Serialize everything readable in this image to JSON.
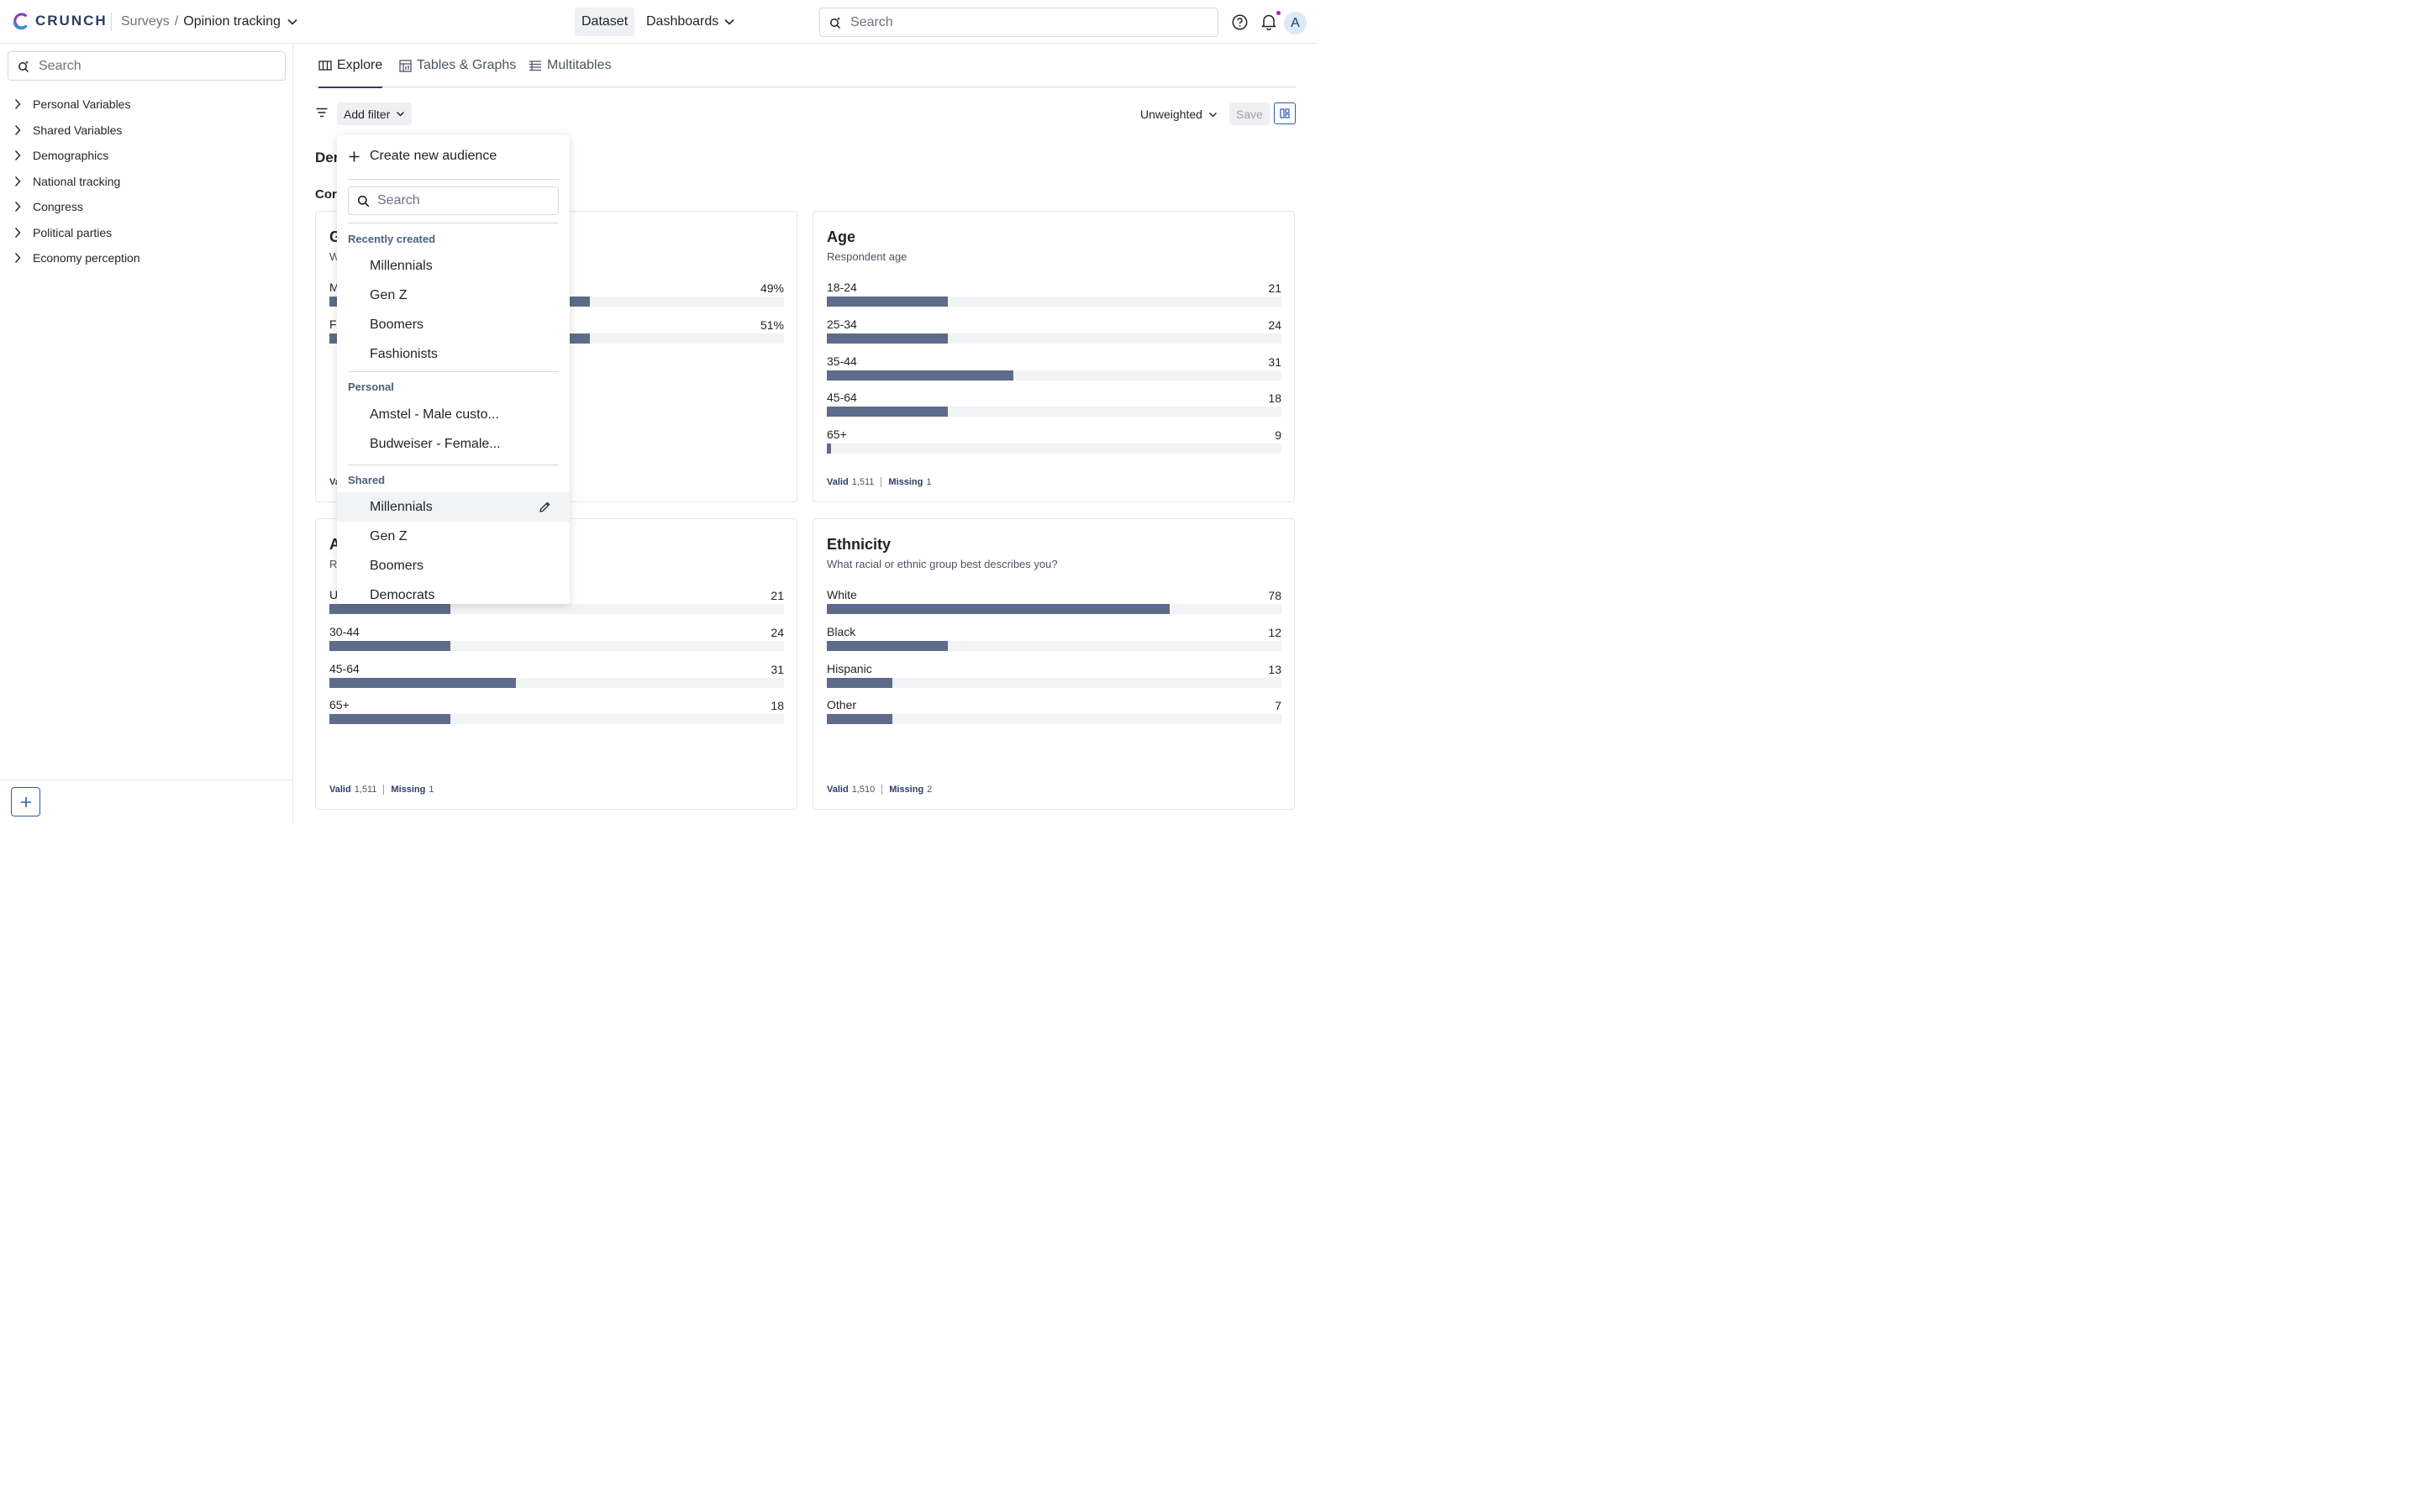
{
  "app": {
    "brand": "CRUNCH",
    "breadcrumb_parent": "Surveys",
    "breadcrumb_sep": "/",
    "breadcrumb_current": "Opinion tracking",
    "nav_dataset": "Dataset",
    "nav_dashboards": "Dashboards",
    "search_placeholder": "Search",
    "avatar_initial": "A"
  },
  "sidebar": {
    "search_placeholder": "Search",
    "items": [
      "Personal Variables",
      "Shared Variables",
      "Demographics",
      "National tracking",
      "Congress",
      "Political parties",
      "Economy perception"
    ]
  },
  "tabs": [
    {
      "label": "Explore",
      "icon": "explore-icon"
    },
    {
      "label": "Tables & Graphs",
      "icon": "table-icon"
    },
    {
      "label": "Multitables",
      "icon": "multitable-icon"
    }
  ],
  "toolbar": {
    "add_filter": "Add filter",
    "weighting": "Unweighted",
    "save": "Save"
  },
  "section_heading": "Der",
  "group_heading": "Cor",
  "cards": [
    {
      "title": "G",
      "subtitle": "W",
      "rows": [
        {
          "label": "M",
          "value": "49%",
          "fraction": 0.573
        },
        {
          "label": "Fe",
          "value": "51%",
          "fraction": 0.573
        }
      ],
      "footer": {
        "valid_label": "Va",
        "valid": "",
        "missing_label": "",
        "missing": ""
      }
    },
    {
      "title": "Age",
      "subtitle": "Respondent age",
      "rows": [
        {
          "label": "18-24",
          "value": "21",
          "fraction": 0.266
        },
        {
          "label": "25-34",
          "value": "24",
          "fraction": 0.266
        },
        {
          "label": "35-44",
          "value": "31",
          "fraction": 0.411
        },
        {
          "label": "45-64",
          "value": "18",
          "fraction": 0.266
        },
        {
          "label": "65+",
          "value": "9",
          "fraction": 0.009
        }
      ],
      "footer": {
        "valid_label": "Valid",
        "valid": "1,511",
        "missing_label": "Missing",
        "missing": "1"
      }
    },
    {
      "title": "A",
      "subtitle": "R",
      "rows": [
        {
          "label": "U",
          "value": "21",
          "fraction": 0.266
        },
        {
          "label": "30-44",
          "value": "24",
          "fraction": 0.266
        },
        {
          "label": "45-64",
          "value": "31",
          "fraction": 0.411
        },
        {
          "label": "65+",
          "value": "18",
          "fraction": 0.266
        }
      ],
      "footer": {
        "valid_label": "Valid",
        "valid": "1,511",
        "missing_label": "Missing",
        "missing": "1"
      }
    },
    {
      "title": "Ethnicity",
      "subtitle": "What racial or ethnic group best describes you?",
      "rows": [
        {
          "label": "White",
          "value": "78",
          "fraction": 0.755
        },
        {
          "label": "Black",
          "value": "12",
          "fraction": 0.266
        },
        {
          "label": "Hispanic",
          "value": "13",
          "fraction": 0.144
        },
        {
          "label": "Other",
          "value": "7",
          "fraction": 0.144
        }
      ],
      "footer": {
        "valid_label": "Valid",
        "valid": "1,510",
        "missing_label": "Missing",
        "missing": "2"
      }
    }
  ],
  "dropdown": {
    "create_label": "Create new audience",
    "search_placeholder": "Search",
    "groups": [
      {
        "label": "Recently created",
        "items": [
          "Millennials",
          "Gen Z",
          "Boomers",
          "Fashionists"
        ]
      },
      {
        "label": "Personal",
        "items": [
          "Amstel - Male custo...",
          "Budweiser - Female..."
        ]
      },
      {
        "label": "Shared",
        "items": [
          "Millennials",
          "Gen Z",
          "Boomers",
          "Democrats"
        ]
      }
    ]
  },
  "colors": {
    "bar": "#5e6b8b",
    "track": "#f2f3f5",
    "accent": "#2f5ca3",
    "brand_text": "#2c3e63"
  }
}
